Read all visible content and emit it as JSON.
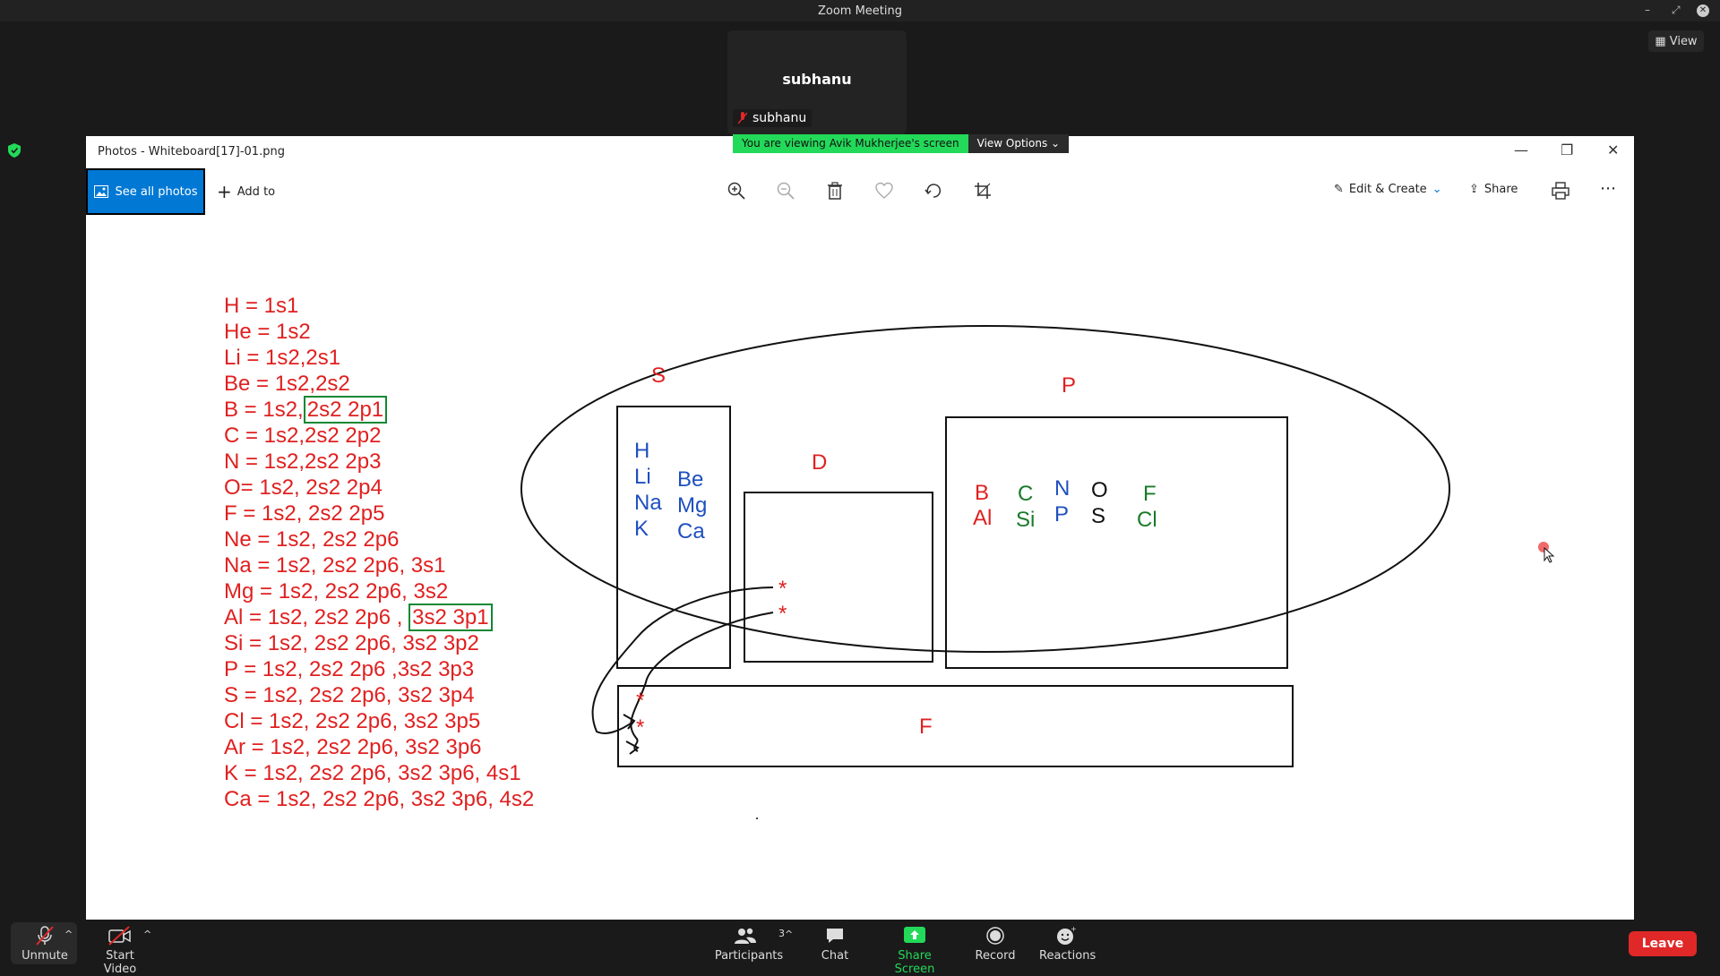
{
  "app": {
    "window_title": "Zoom Meeting",
    "view_label": "View"
  },
  "participant": {
    "tile_name": "subhanu",
    "label_name": "subhanu"
  },
  "share_banner": {
    "viewing_text": "You are viewing Avik Mukherjee's screen",
    "options_label": "View Options"
  },
  "photos": {
    "title": "Photos - Whiteboard[17]-01.png",
    "see_all_label": "See all photos",
    "add_to_label": "Add to",
    "edit_create_label": "Edit & Create",
    "share_label": "Share"
  },
  "whiteboard": {
    "config_lines": [
      {
        "pre": "H = 1s1",
        "boxed": "",
        "post": ""
      },
      {
        "pre": "He = 1s2",
        "boxed": "",
        "post": ""
      },
      {
        "pre": "Li = 1s2,2s1",
        "boxed": "",
        "post": ""
      },
      {
        "pre": "Be = 1s2,2s2",
        "boxed": "",
        "post": ""
      },
      {
        "pre": "B = 1s2,",
        "boxed": "2s2 2p1",
        "post": ""
      },
      {
        "pre": "C = 1s2,2s2 2p2",
        "boxed": "",
        "post": ""
      },
      {
        "pre": "N = 1s2,2s2 2p3",
        "boxed": "",
        "post": ""
      },
      {
        "pre": "O= 1s2, 2s2 2p4",
        "boxed": "",
        "post": ""
      },
      {
        "pre": "F = 1s2, 2s2 2p5",
        "boxed": "",
        "post": ""
      },
      {
        "pre": "Ne = 1s2, 2s2 2p6",
        "boxed": "",
        "post": ""
      },
      {
        "pre": "Na = 1s2, 2s2 2p6, 3s1",
        "boxed": "",
        "post": ""
      },
      {
        "pre": "Mg = 1s2, 2s2 2p6, 3s2",
        "boxed": "",
        "post": ""
      },
      {
        "pre": "Al = 1s2, 2s2 2p6 , ",
        "boxed": "3s2 3p1",
        "post": ""
      },
      {
        "pre": "Si = 1s2, 2s2 2p6, 3s2 3p2",
        "boxed": "",
        "post": ""
      },
      {
        "pre": "P = 1s2, 2s2 2p6 ,3s2 3p3",
        "boxed": "",
        "post": ""
      },
      {
        "pre": "S = 1s2, 2s2 2p6, 3s2 3p4",
        "boxed": "",
        "post": ""
      },
      {
        "pre": "Cl = 1s2, 2s2 2p6, 3s2 3p5",
        "boxed": "",
        "post": ""
      },
      {
        "pre": "Ar = 1s2, 2s2 2p6, 3s2 3p6",
        "boxed": "",
        "post": ""
      },
      {
        "pre": "K = 1s2, 2s2 2p6, 3s2 3p6, 4s1",
        "boxed": "",
        "post": ""
      },
      {
        "pre": "Ca = 1s2, 2s2 2p6, 3s2 3p6, 4s2",
        "boxed": "",
        "post": ""
      }
    ],
    "block_labels": {
      "s": "S",
      "p": "P",
      "d": "D",
      "f": "F"
    },
    "s_block": {
      "col1": [
        "H",
        "Li",
        "Na",
        "K"
      ],
      "col2": [
        "Be",
        "Mg",
        "Ca"
      ]
    },
    "p_block": {
      "b": "B",
      "al": "Al",
      "c": "C",
      "si": "Si",
      "n": "N",
      "p": "P",
      "o": "O",
      "s": "S",
      "f": "F",
      "cl": "Cl"
    },
    "star": "*",
    "colors": {
      "ink_red": "#e02020",
      "ink_blue": "#1f4fbf",
      "ink_green": "#1a7a2a",
      "box_green": "#118833"
    }
  },
  "bottom_bar": {
    "unmute": "Unmute",
    "start_video": "Start Video",
    "participants": "Participants",
    "participant_count": "3",
    "chat": "Chat",
    "share_screen": "Share Screen",
    "record": "Record",
    "reactions": "Reactions",
    "leave": "Leave"
  }
}
